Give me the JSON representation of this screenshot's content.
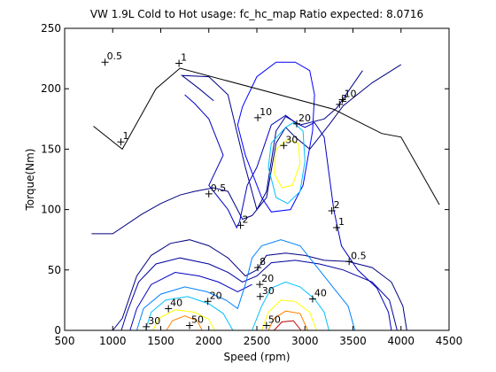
{
  "chart_data": {
    "type": "contour",
    "title": "VW 1.9L Cold to Hot usage: fc_hc_map Ratio expected: 8.0716",
    "xlabel": "Speed (rpm)",
    "ylabel": "Torque(Nm)",
    "xlim": [
      500,
      4500
    ],
    "ylim": [
      0,
      250
    ],
    "xticks": [
      500,
      1000,
      1500,
      2000,
      2500,
      3000,
      3500,
      4000,
      4500
    ],
    "yticks": [
      0,
      50,
      100,
      150,
      200,
      250
    ],
    "grid": false,
    "max_torque_curve": [
      [
        800,
        169
      ],
      [
        1100,
        150
      ],
      [
        1450,
        200
      ],
      [
        1700,
        217
      ],
      [
        3300,
        183
      ],
      [
        3800,
        163
      ],
      [
        4000,
        160
      ],
      [
        4400,
        104
      ]
    ],
    "contours": [
      {
        "level": 0.5,
        "color": "#000080",
        "points": [
          [
            780,
            80
          ],
          [
            1000,
            80
          ],
          [
            1300,
            96
          ],
          [
            1500,
            105
          ],
          [
            1700,
            112
          ],
          [
            1850,
            115
          ],
          [
            2050,
            118
          ],
          [
            2200,
            115
          ],
          [
            2350,
            92
          ],
          [
            2450,
            95
          ],
          [
            2600,
            110
          ],
          [
            2700,
            155
          ],
          [
            2800,
            168
          ],
          [
            2900,
            160
          ],
          [
            3050,
            150
          ],
          [
            3250,
            170
          ],
          [
            3400,
            186
          ],
          [
            3700,
            205
          ],
          [
            4000,
            220
          ]
        ]
      },
      {
        "level": 0.5,
        "color": "#000080",
        "points": [
          [
            1000,
            0
          ],
          [
            1100,
            10
          ],
          [
            1250,
            45
          ],
          [
            1400,
            62
          ],
          [
            1600,
            72
          ],
          [
            1800,
            75
          ],
          [
            2000,
            70
          ],
          [
            2200,
            60
          ],
          [
            2380,
            45
          ],
          [
            2500,
            50
          ],
          [
            2600,
            62
          ],
          [
            2800,
            64
          ],
          [
            3000,
            62
          ],
          [
            3200,
            58
          ],
          [
            3450,
            57
          ],
          [
            3700,
            52
          ],
          [
            3900,
            40
          ],
          [
            4020,
            20
          ],
          [
            4060,
            0
          ]
        ]
      },
      {
        "level": 1,
        "color": "#00008c",
        "points": [
          [
            2050,
            190
          ],
          [
            1900,
            200
          ],
          [
            1720,
            211
          ],
          [
            2000,
            210
          ],
          [
            2200,
            195
          ],
          [
            2380,
            135
          ],
          [
            2500,
            100
          ],
          [
            2600,
            115
          ],
          [
            2700,
            165
          ],
          [
            2800,
            177
          ],
          [
            2950,
            170
          ],
          [
            3200,
            175
          ],
          [
            3330,
            184
          ],
          [
            3600,
            215
          ]
        ]
      },
      {
        "level": 1,
        "color": "#0000a0",
        "points": [
          [
            1090,
            0
          ],
          [
            1150,
            15
          ],
          [
            1270,
            40
          ],
          [
            1450,
            55
          ],
          [
            1700,
            60
          ],
          [
            2000,
            55
          ],
          [
            2200,
            48
          ],
          [
            2350,
            40
          ],
          [
            2500,
            45
          ],
          [
            2650,
            56
          ],
          [
            2900,
            58
          ],
          [
            3150,
            55
          ],
          [
            3400,
            50
          ],
          [
            3700,
            40
          ],
          [
            3880,
            25
          ],
          [
            3960,
            0
          ]
        ]
      },
      {
        "level": 2,
        "color": "#0000c0",
        "points": [
          [
            1750,
            195
          ],
          [
            1850,
            188
          ],
          [
            2000,
            175
          ],
          [
            2150,
            145
          ],
          [
            2000,
            120
          ],
          [
            2200,
            100
          ],
          [
            2290,
            85
          ],
          [
            2320,
            90
          ],
          [
            2400,
            120
          ],
          [
            2500,
            135
          ],
          [
            2650,
            170
          ],
          [
            2800,
            178
          ],
          [
            2900,
            172
          ],
          [
            3000,
            168
          ],
          [
            3100,
            172
          ],
          [
            3200,
            160
          ],
          [
            3300,
            100
          ],
          [
            3380,
            70
          ],
          [
            3550,
            50
          ],
          [
            3750,
            35
          ],
          [
            3870,
            15
          ],
          [
            3900,
            0
          ]
        ]
      },
      {
        "level": 2,
        "color": "#0000c0",
        "points": [
          [
            1180,
            0
          ],
          [
            1250,
            18
          ],
          [
            1400,
            38
          ],
          [
            1650,
            48
          ],
          [
            1900,
            45
          ],
          [
            2100,
            40
          ],
          [
            2300,
            32
          ],
          [
            2450,
            38
          ]
        ]
      },
      {
        "level": 8,
        "color": "#0080ff",
        "points": [
          [
            1250,
            0
          ],
          [
            1320,
            18
          ],
          [
            1500,
            30
          ],
          [
            1750,
            36
          ],
          [
            1980,
            32
          ],
          [
            2180,
            25
          ],
          [
            2300,
            18
          ],
          [
            2380,
            38
          ],
          [
            2450,
            60
          ],
          [
            2550,
            70
          ],
          [
            2750,
            75
          ],
          [
            2950,
            70
          ],
          [
            3150,
            50
          ],
          [
            3300,
            35
          ],
          [
            3450,
            20
          ],
          [
            3520,
            0
          ]
        ]
      },
      {
        "level": 10,
        "color": "#0000ff",
        "points": [
          [
            2350,
            185
          ],
          [
            2300,
            170
          ],
          [
            2380,
            145
          ],
          [
            2550,
            110
          ],
          [
            2650,
            98
          ],
          [
            2850,
            100
          ],
          [
            2980,
            120
          ],
          [
            3080,
            165
          ],
          [
            3100,
            195
          ],
          [
            3050,
            215
          ],
          [
            2900,
            222
          ],
          [
            2700,
            222
          ],
          [
            2500,
            210
          ],
          [
            2350,
            185
          ]
        ]
      },
      {
        "level": 20,
        "color": "#00c0ff",
        "points": [
          [
            1340,
            0
          ],
          [
            1400,
            15
          ],
          [
            1550,
            25
          ],
          [
            1780,
            28
          ],
          [
            2000,
            22
          ],
          [
            2150,
            14
          ],
          [
            2250,
            0
          ]
        ]
      },
      {
        "level": 20,
        "color": "#00c0ff",
        "points": [
          [
            2450,
            0
          ],
          [
            2550,
            20
          ],
          [
            2650,
            35
          ],
          [
            2800,
            40
          ],
          [
            2950,
            36
          ],
          [
            3100,
            26
          ],
          [
            3200,
            15
          ],
          [
            3250,
            0
          ]
        ]
      },
      {
        "level": 20,
        "color": "#00c0ff",
        "points": [
          [
            2800,
            168
          ],
          [
            2650,
            155
          ],
          [
            2620,
            135
          ],
          [
            2700,
            110
          ],
          [
            2820,
            105
          ],
          [
            2950,
            115
          ],
          [
            3000,
            140
          ],
          [
            2980,
            165
          ],
          [
            2880,
            172
          ],
          [
            2800,
            168
          ]
        ]
      },
      {
        "level": 30,
        "color": "#ffff00",
        "points": [
          [
            1420,
            0
          ],
          [
            1480,
            10
          ],
          [
            1650,
            17
          ],
          [
            1850,
            15
          ],
          [
            2000,
            9
          ],
          [
            2060,
            0
          ]
        ]
      },
      {
        "level": 30,
        "color": "#ffff00",
        "points": [
          [
            2550,
            0
          ],
          [
            2620,
            15
          ],
          [
            2750,
            25
          ],
          [
            2900,
            24
          ],
          [
            3050,
            15
          ],
          [
            3120,
            0
          ]
        ]
      },
      {
        "level": 30,
        "color": "#ffff00",
        "points": [
          [
            2820,
            158
          ],
          [
            2700,
            150
          ],
          [
            2680,
            130
          ],
          [
            2760,
            118
          ],
          [
            2870,
            120
          ],
          [
            2950,
            138
          ],
          [
            2930,
            155
          ],
          [
            2820,
            158
          ]
        ]
      },
      {
        "level": 40,
        "color": "#ff8000",
        "points": [
          [
            1560,
            0
          ],
          [
            1620,
            8
          ],
          [
            1750,
            12
          ],
          [
            1880,
            8
          ],
          [
            1930,
            0
          ]
        ]
      },
      {
        "level": 40,
        "color": "#ff8000",
        "points": [
          [
            2620,
            0
          ],
          [
            2680,
            10
          ],
          [
            2800,
            16
          ],
          [
            2950,
            14
          ],
          [
            3030,
            0
          ]
        ]
      },
      {
        "level": 50,
        "color": "#c00000",
        "points": [
          [
            2680,
            0
          ],
          [
            2760,
            7
          ],
          [
            2880,
            8
          ],
          [
            2960,
            0
          ]
        ]
      }
    ],
    "labels": [
      {
        "text": "0.5",
        "x": 920,
        "y": 222
      },
      {
        "text": "1",
        "x": 1690,
        "y": 221
      },
      {
        "text": "1",
        "x": 1085,
        "y": 156
      },
      {
        "text": "10",
        "x": 2510,
        "y": 176
      },
      {
        "text": "20",
        "x": 2915,
        "y": 171
      },
      {
        "text": "30",
        "x": 2780,
        "y": 153
      },
      {
        "text": "10",
        "x": 3390,
        "y": 191
      },
      {
        "text": "2",
        "x": 3360,
        "y": 187
      },
      {
        "text": "0.5",
        "x": 2000,
        "y": 113
      },
      {
        "text": "2",
        "x": 2330,
        "y": 87
      },
      {
        "text": "2",
        "x": 3280,
        "y": 99
      },
      {
        "text": "1",
        "x": 3330,
        "y": 85
      },
      {
        "text": "0.5",
        "x": 3460,
        "y": 57
      },
      {
        "text": "8",
        "x": 2510,
        "y": 52
      },
      {
        "text": "20",
        "x": 2530,
        "y": 38
      },
      {
        "text": "30",
        "x": 2535,
        "y": 28
      },
      {
        "text": "40",
        "x": 3080,
        "y": 26
      },
      {
        "text": "40",
        "x": 1580,
        "y": 18
      },
      {
        "text": "20",
        "x": 1990,
        "y": 24
      },
      {
        "text": "30",
        "x": 1350,
        "y": 3
      },
      {
        "text": "50",
        "x": 1800,
        "y": 4
      },
      {
        "text": "50",
        "x": 2600,
        "y": 4
      }
    ]
  }
}
